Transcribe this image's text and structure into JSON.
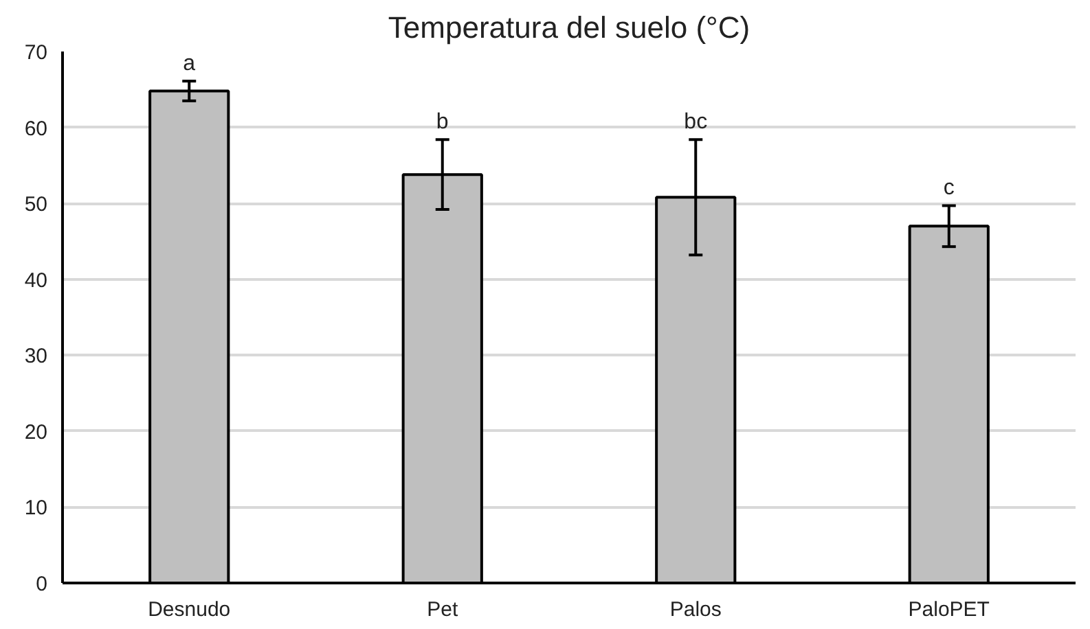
{
  "chart_data": {
    "type": "bar",
    "title": "Temperatura del suelo (°C)",
    "categories": [
      "Desnudo",
      "Pet",
      "Palos",
      "PaloPET"
    ],
    "values": [
      64.8,
      53.8,
      50.8,
      47.0
    ],
    "errors": [
      1.3,
      4.6,
      7.6,
      2.7
    ],
    "color": "#bfbfbf",
    "ylim": [
      0,
      70
    ],
    "yticks": [
      0,
      10,
      20,
      30,
      40,
      50,
      60,
      70
    ],
    "grid": "y",
    "annotations": [
      "a",
      "b",
      "bc",
      "c"
    ]
  }
}
